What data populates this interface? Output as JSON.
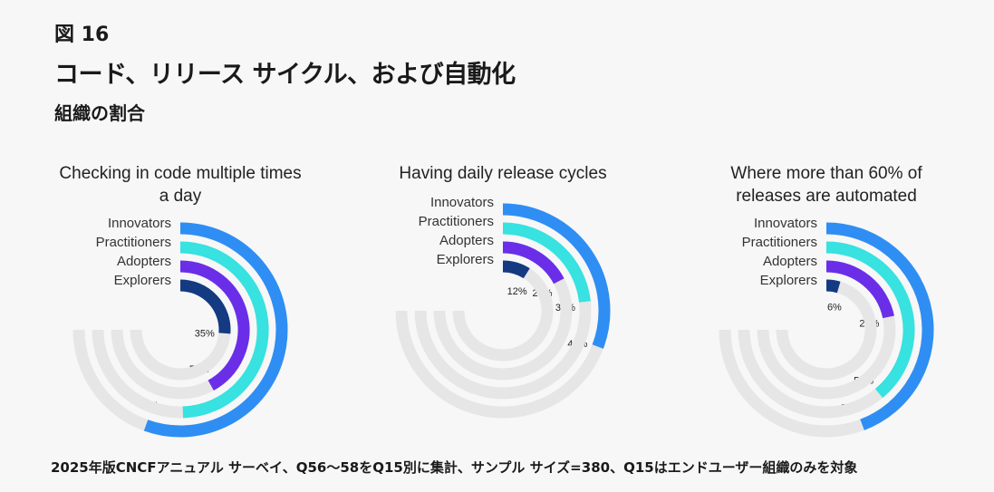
{
  "header": {
    "figure_number": "図 16",
    "title": "コード、リリース サイクル、および自動化",
    "subtitle": "組織の割合"
  },
  "footnote": "2025年版CNCFアニュアル サーベイ、Q56～58をQ15別に集計、サンプル サイズ=380、Q15はエンドユーザー組織のみを対象",
  "colors": {
    "Innovators": "#2f8ef3",
    "Practitioners": "#37e2e0",
    "Adopters": "#6a2ee8",
    "Explorers": "#143a82",
    "track": "#e6e6e6"
  },
  "chart_data": [
    {
      "type": "radial-bar",
      "title_lines": [
        "Checking in code multiple times",
        "a day"
      ],
      "series": [
        {
          "name": "Innovators",
          "value": 74,
          "label": "74%"
        },
        {
          "name": "Practitioners",
          "value": 66,
          "label": "66%"
        },
        {
          "name": "Adopters",
          "value": 56,
          "label": "56%"
        },
        {
          "name": "Explorers",
          "value": 35,
          "label": "35%"
        }
      ]
    },
    {
      "type": "radial-bar",
      "title_lines": [
        "Having daily release cycles"
      ],
      "series": [
        {
          "name": "Innovators",
          "value": 41,
          "label": "41%"
        },
        {
          "name": "Practitioners",
          "value": 31,
          "label": "31%"
        },
        {
          "name": "Adopters",
          "value": 23,
          "label": "23%"
        },
        {
          "name": "Explorers",
          "value": 12,
          "label": "12%"
        }
      ]
    },
    {
      "type": "radial-bar",
      "title_lines": [
        "Where more than 60% of",
        "releases are automated"
      ],
      "series": [
        {
          "name": "Innovators",
          "value": 59,
          "label": "59%"
        },
        {
          "name": "Practitioners",
          "value": 52,
          "label": "52%"
        },
        {
          "name": "Adopters",
          "value": 29,
          "label": "29%"
        },
        {
          "name": "Explorers",
          "value": 6,
          "label": "6%"
        }
      ]
    }
  ]
}
